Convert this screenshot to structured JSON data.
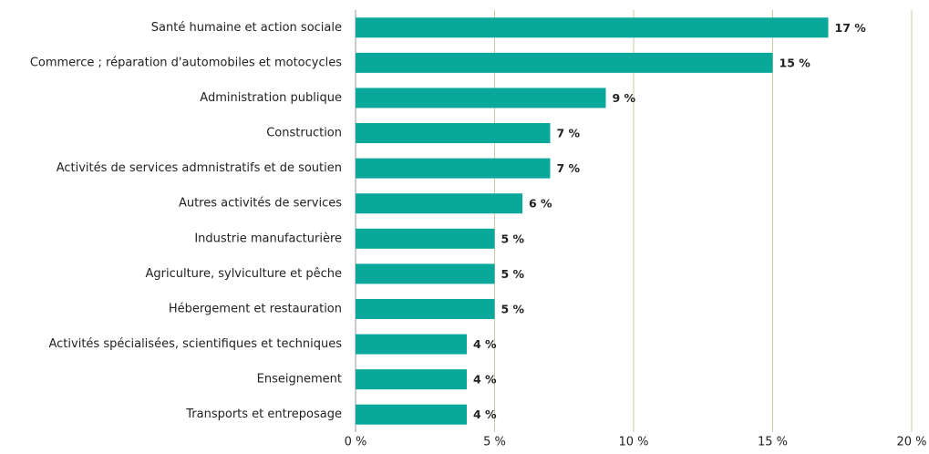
{
  "chart_data": {
    "type": "bar",
    "orientation": "horizontal",
    "categories": [
      "Santé humaine et action sociale",
      "Commerce ; réparation d'automobiles et motocycles",
      "Administration publique",
      "Construction",
      "Activités de services admnistratifs et de soutien",
      "Autres activités de services",
      "Industrie manufacturière",
      "Agriculture, sylviculture et pêche",
      "Hébergement et restauration",
      "Activités spécialisées, scientifiques et techniques",
      "Enseignement",
      "Transports et entreposage"
    ],
    "values": [
      17,
      15,
      9,
      7,
      7,
      6,
      5,
      5,
      5,
      4,
      4,
      4
    ],
    "value_labels": [
      "17 %",
      "15 %",
      "9 %",
      "7 %",
      "7 %",
      "6 %",
      "5 %",
      "5 %",
      "5 %",
      "4 %",
      "4 %",
      "4 %"
    ],
    "color": "#0aa89a",
    "xlim": [
      0,
      20
    ],
    "xticks": [
      {
        "value": 0,
        "label": "0 %"
      },
      {
        "value": 5,
        "label": "5 %"
      },
      {
        "value": 10,
        "label": "10 %"
      },
      {
        "value": 15,
        "label": "15 %"
      },
      {
        "value": 20,
        "label": "20 %"
      }
    ],
    "grid": true
  }
}
